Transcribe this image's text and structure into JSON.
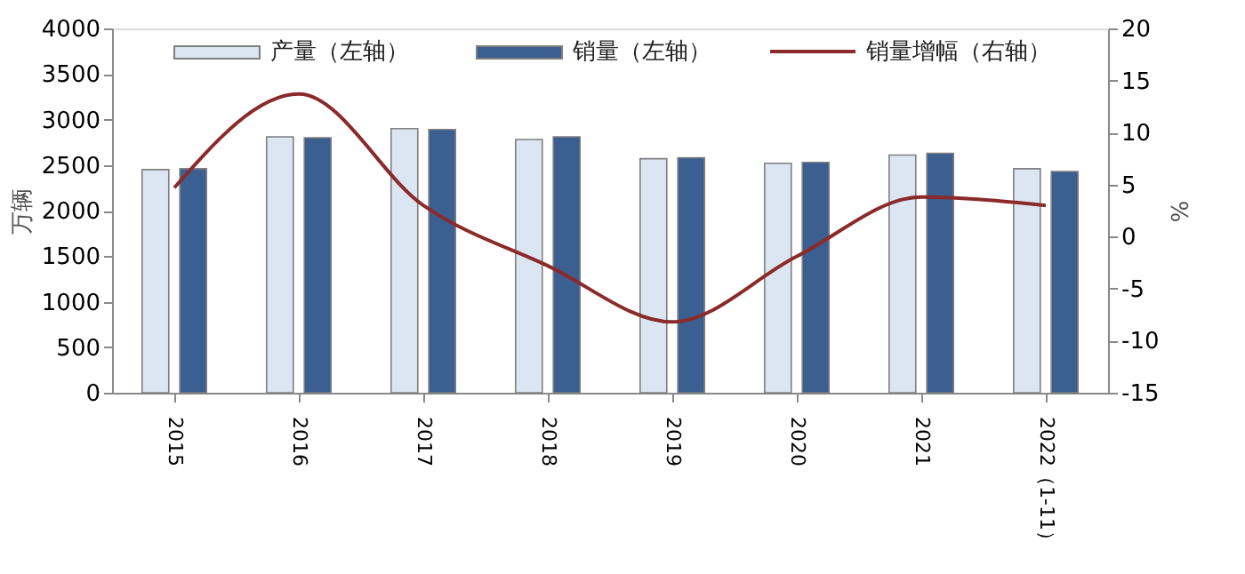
{
  "chart_data": {
    "type": "bar",
    "categories": [
      "2015",
      "2016",
      "2017",
      "2018",
      "2019",
      "2020",
      "2021",
      "2022（1-11）"
    ],
    "series": [
      {
        "name": "产量（左轴）",
        "axis": "y",
        "color": "#dce6f2",
        "values": [
          2450,
          2810,
          2900,
          2780,
          2570,
          2520,
          2610,
          2460
        ]
      },
      {
        "name": "销量（左轴）",
        "axis": "y",
        "color": "#3b5f91",
        "values": [
          2460,
          2800,
          2890,
          2810,
          2580,
          2530,
          2630,
          2430
        ]
      },
      {
        "name": "销量增幅（右轴）",
        "type": "line",
        "axis": "y2",
        "color": "#8b2a2a",
        "values": [
          4.7,
          13.7,
          3.0,
          -2.8,
          -8.2,
          -1.9,
          3.8,
          3.0
        ]
      }
    ],
    "ylabel": "万辆",
    "y2label": "%",
    "ylim": [
      0,
      4000
    ],
    "yticks": [
      0,
      500,
      1000,
      1500,
      2000,
      2500,
      3000,
      3500,
      4000
    ],
    "y2lim": [
      -15,
      20
    ],
    "y2ticks": [
      -15,
      -10,
      -5,
      0,
      5,
      10,
      15,
      20
    ],
    "legend": "top",
    "grid": false,
    "marker": "none",
    "line_style": "solid"
  }
}
